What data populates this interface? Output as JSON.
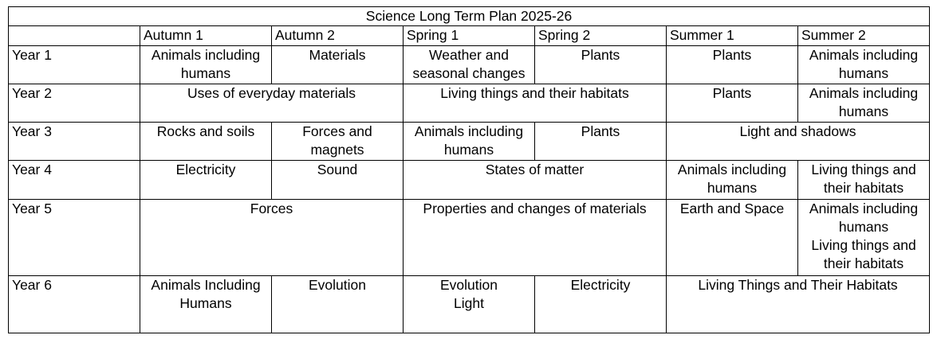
{
  "title": "Science Long Term Plan 2025-26",
  "headers": [
    "",
    "Autumn 1",
    "Autumn 2",
    "Spring 1",
    "Spring 2",
    "Summer 1",
    "Summer 2"
  ],
  "rows": [
    {
      "year": "Year 1",
      "cells": [
        [
          "Animals including",
          "humans"
        ],
        [
          "Materials"
        ],
        [
          "Weather and",
          "seasonal changes"
        ],
        [
          "Plants"
        ],
        [
          "Plants"
        ],
        [
          "Animals including",
          "humans"
        ]
      ]
    },
    {
      "year": "Year 2",
      "cells": [
        [
          "Uses of everyday materials"
        ],
        [
          "Living things and their habitats"
        ],
        [
          "Plants"
        ],
        [
          "Animals including",
          "humans"
        ]
      ]
    },
    {
      "year": "Year 3",
      "cells": [
        [
          "Rocks and soils"
        ],
        [
          "Forces and",
          "magnets"
        ],
        [
          "Animals including",
          "humans"
        ],
        [
          "Plants"
        ],
        [
          "Light and shadows"
        ]
      ]
    },
    {
      "year": "Year 4",
      "cells": [
        [
          "Electricity"
        ],
        [
          "Sound"
        ],
        [
          "States of matter"
        ],
        [
          "Animals including",
          "humans"
        ],
        [
          "Living things and",
          "their habitats"
        ]
      ]
    },
    {
      "year": "Year 5",
      "cells": [
        [
          "Forces"
        ],
        [
          "Properties and changes of materials"
        ],
        [
          "Earth and Space"
        ],
        [
          "Animals including",
          "humans",
          "Living things and",
          "their habitats"
        ]
      ]
    },
    {
      "year": "Year 6",
      "cells": [
        [
          "Animals Including",
          "Humans"
        ],
        [
          "Evolution"
        ],
        [
          "Evolution",
          "Light"
        ],
        [
          "Electricity"
        ],
        [
          "Living Things and Their Habitats"
        ]
      ]
    }
  ]
}
